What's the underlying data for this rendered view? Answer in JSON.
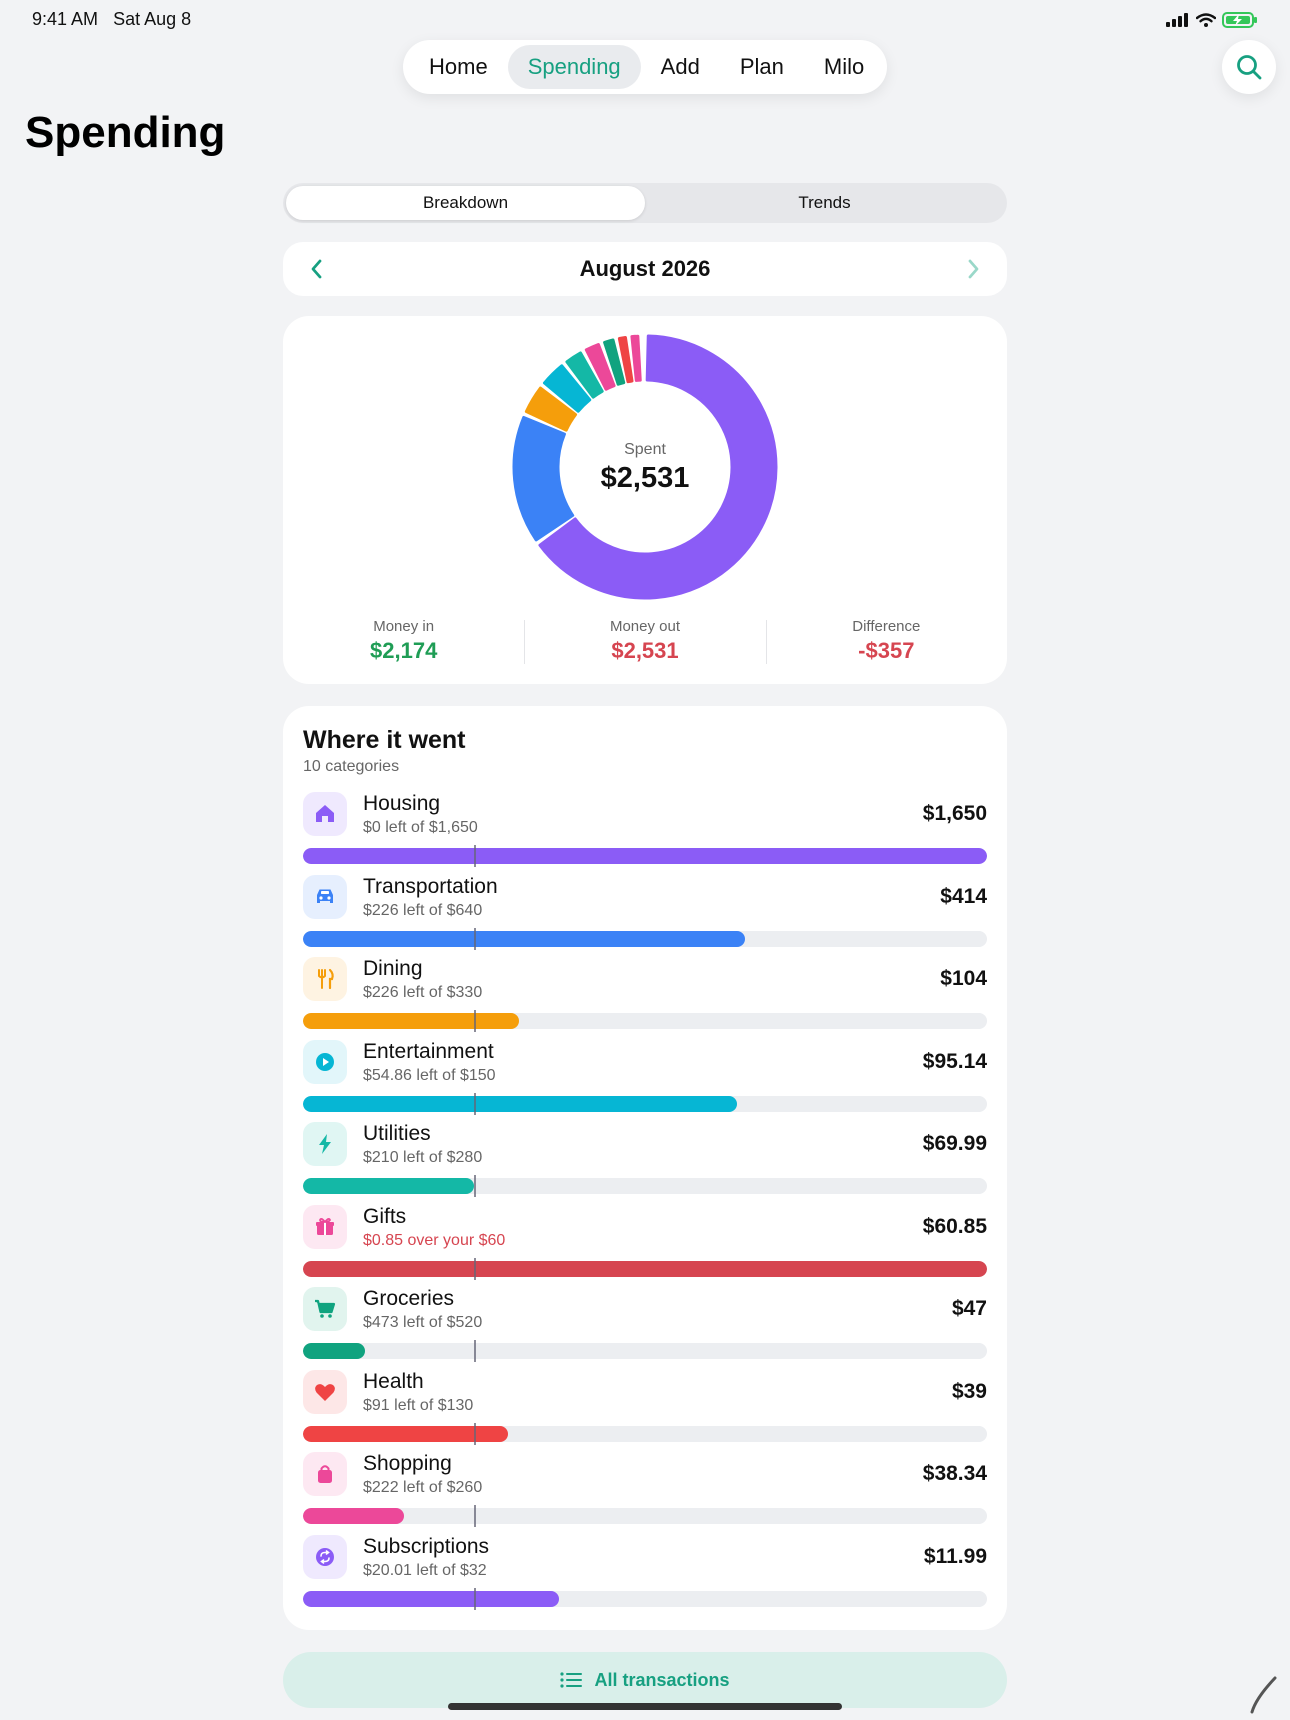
{
  "status": {
    "time": "9:41 AM",
    "date": "Sat Aug 8"
  },
  "nav": {
    "tabs": [
      {
        "label": "Home",
        "active": false
      },
      {
        "label": "Spending",
        "active": true
      },
      {
        "label": "Add",
        "active": false
      },
      {
        "label": "Plan",
        "active": false
      },
      {
        "label": "Milo",
        "active": false
      }
    ]
  },
  "page_title": "Spending",
  "segments": [
    {
      "label": "Breakdown",
      "active": true
    },
    {
      "label": "Trends",
      "active": false
    }
  ],
  "month": {
    "label": "August 2026"
  },
  "donut": {
    "label": "Spent",
    "value": "$2,531"
  },
  "summary": {
    "money_in": {
      "label": "Money in",
      "value": "$2,174",
      "color": "#1f9d55"
    },
    "money_out": {
      "label": "Money out",
      "value": "$2,531",
      "color": "#d64550"
    },
    "difference": {
      "label": "Difference",
      "value": "-$357",
      "color": "#d64550"
    }
  },
  "categories_section": {
    "title": "Where it went",
    "subtitle": "10 categories"
  },
  "categories": [
    {
      "name": "Housing",
      "note": "$0 left of $1,650",
      "amount": "$1,650",
      "spent": 1650,
      "budget": 1650,
      "color": "#8b5cf6",
      "bg": "#efe9fe",
      "icon": "house-icon",
      "over": false
    },
    {
      "name": "Transportation",
      "note": "$226 left of $640",
      "amount": "$414",
      "spent": 414,
      "budget": 640,
      "color": "#3b82f6",
      "bg": "#e6effe",
      "icon": "car-icon",
      "over": false
    },
    {
      "name": "Dining",
      "note": "$226 left of $330",
      "amount": "$104",
      "spent": 104,
      "budget": 330,
      "color": "#f59e0b",
      "bg": "#fef3e2",
      "icon": "fork-knife-icon",
      "over": false
    },
    {
      "name": "Entertainment",
      "note": "$54.86 left of $150",
      "amount": "$95.14",
      "spent": 95.14,
      "budget": 150,
      "color": "#06b6d4",
      "bg": "#e2f6fa",
      "icon": "play-icon",
      "over": false
    },
    {
      "name": "Utilities",
      "note": "$210 left of $280",
      "amount": "$69.99",
      "spent": 69.99,
      "budget": 280,
      "color": "#14b8a6",
      "bg": "#e0f6f3",
      "icon": "bolt-icon",
      "over": false
    },
    {
      "name": "Gifts",
      "note": "$0.85 over your $60",
      "amount": "$60.85",
      "spent": 60.85,
      "budget": 60,
      "color": "#ec4899",
      "bg": "#fde8f2",
      "icon": "gift-icon",
      "over": true
    },
    {
      "name": "Groceries",
      "note": "$473 left of $520",
      "amount": "$47",
      "spent": 47,
      "budget": 520,
      "color": "#10a37f",
      "bg": "#e1f4ee",
      "icon": "cart-icon",
      "over": false
    },
    {
      "name": "Health",
      "note": "$91 left of $130",
      "amount": "$39",
      "spent": 39,
      "budget": 130,
      "color": "#ef4444",
      "bg": "#fde7e7",
      "icon": "heart-icon",
      "over": false
    },
    {
      "name": "Shopping",
      "note": "$222 left of $260",
      "amount": "$38.34",
      "spent": 38.34,
      "budget": 260,
      "color": "#ec4899",
      "bg": "#fde8f2",
      "icon": "bag-icon",
      "over": false
    },
    {
      "name": "Subscriptions",
      "note": "$20.01 left of $32",
      "amount": "$11.99",
      "spent": 11.99,
      "budget": 32,
      "color": "#8b5cf6",
      "bg": "#efe9fe",
      "icon": "repeat-icon",
      "over": false
    }
  ],
  "over_color": "#d64550",
  "all_transactions": {
    "label": "All transactions"
  }
}
